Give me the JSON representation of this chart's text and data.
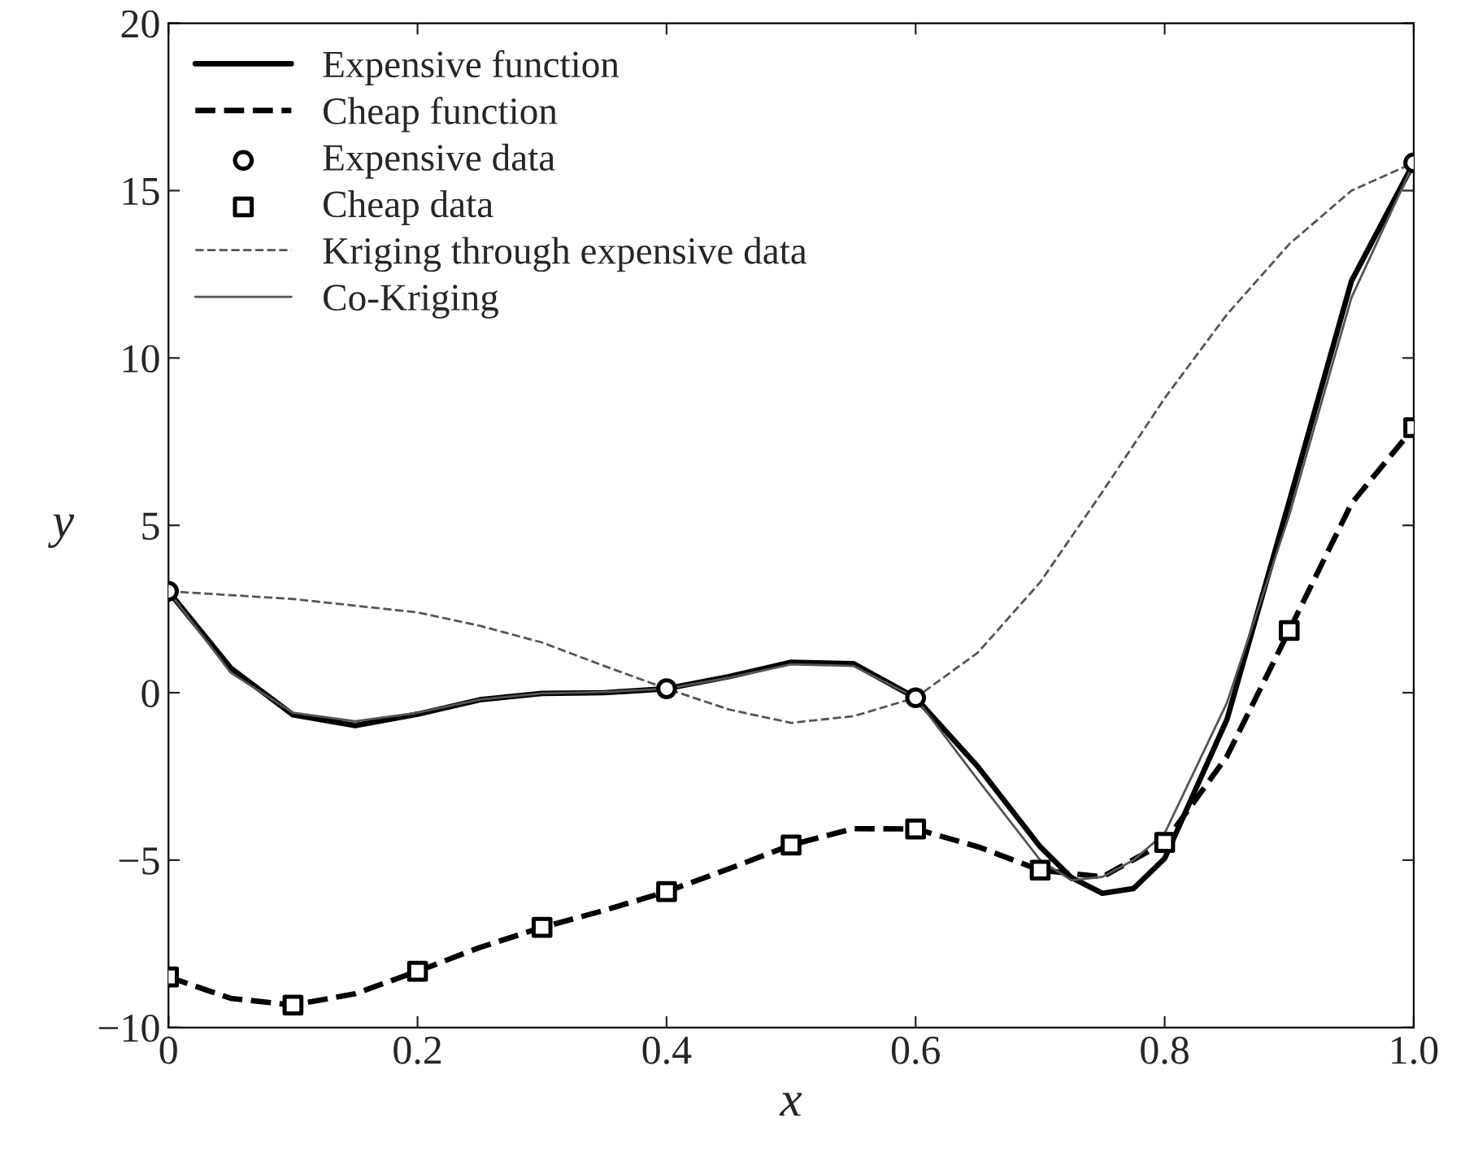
{
  "chart_data": {
    "type": "line",
    "xlabel": "x",
    "ylabel": "y",
    "xlim": [
      0,
      1
    ],
    "ylim": [
      -10,
      20
    ],
    "xticks": [
      0,
      {
        "value": 0.2,
        "label": "0.2"
      },
      {
        "value": 0.4,
        "label": "0.4"
      },
      {
        "value": 0.6,
        "label": "0.6"
      },
      {
        "value": 0.8,
        "label": "0.8"
      },
      {
        "value": 1,
        "label": "1.0"
      }
    ],
    "yticks": [
      {
        "value": -10,
        "label": "−10"
      },
      {
        "value": -5,
        "label": "−5"
      },
      0,
      5,
      10,
      15,
      20
    ],
    "grid": false,
    "legend": "top left",
    "series": [
      {
        "name": "Expensive function",
        "line_style": "solid",
        "color": "#000000",
        "x": [
          0,
          0.05,
          0.1,
          0.15,
          0.2,
          0.25,
          0.3,
          0.35,
          0.4,
          0.45,
          0.5,
          0.55,
          0.6,
          0.65,
          0.7,
          0.725,
          0.75,
          0.775,
          0.8,
          0.85,
          0.9,
          0.95,
          1.0
        ],
        "values": [
          3.03,
          0.74,
          -0.66,
          -0.98,
          -0.64,
          -0.21,
          -0.02,
          0.0,
          0.12,
          0.48,
          0.91,
          0.87,
          -0.15,
          -2.21,
          -4.6,
          -5.52,
          -5.99,
          -5.85,
          -4.95,
          -0.8,
          5.71,
          12.3,
          15.83
        ]
      },
      {
        "name": "Cheap function",
        "line_style": "dashed",
        "color": "#000000",
        "x": [
          0,
          0.05,
          0.1,
          0.15,
          0.2,
          0.25,
          0.3,
          0.35,
          0.4,
          0.45,
          0.5,
          0.55,
          0.6,
          0.65,
          0.7,
          0.75,
          0.8,
          0.85,
          0.9,
          0.95,
          1.0
        ],
        "values": [
          -8.49,
          -9.13,
          -9.33,
          -8.99,
          -8.32,
          -7.61,
          -7.01,
          -6.5,
          -5.94,
          -5.26,
          -4.55,
          -4.06,
          -4.07,
          -4.6,
          -5.3,
          -5.5,
          -4.47,
          -1.9,
          1.86,
          5.65,
          7.92
        ]
      },
      {
        "name": "Expensive data",
        "type": "scatter",
        "marker": "circle",
        "color": "#000000",
        "x": [
          0,
          0.4,
          0.6,
          1.0
        ],
        "values": [
          3.03,
          0.12,
          -0.15,
          15.83
        ]
      },
      {
        "name": "Cheap data",
        "type": "scatter",
        "marker": "square",
        "color": "#000000",
        "x": [
          0,
          0.1,
          0.2,
          0.3,
          0.4,
          0.5,
          0.6,
          0.7,
          0.8,
          0.9,
          1.0
        ],
        "values": [
          -8.49,
          -9.33,
          -8.32,
          -7.01,
          -5.94,
          -4.55,
          -4.07,
          -5.3,
          -4.47,
          1.86,
          7.92
        ]
      },
      {
        "name": "Kriging through expensive data",
        "line_style": "dashed",
        "color": "#555555",
        "x": [
          0,
          0.1,
          0.2,
          0.25,
          0.3,
          0.35,
          0.4,
          0.45,
          0.5,
          0.55,
          0.6,
          0.65,
          0.7,
          0.75,
          0.8,
          0.85,
          0.9,
          0.95,
          1.0
        ],
        "values": [
          3.03,
          2.8,
          2.4,
          2.0,
          1.5,
          0.8,
          0.12,
          -0.5,
          -0.9,
          -0.7,
          -0.15,
          1.2,
          3.3,
          6.0,
          8.8,
          11.3,
          13.4,
          15.0,
          15.83
        ]
      },
      {
        "name": "Co-Kriging",
        "line_style": "solid",
        "color": "#555555",
        "x": [
          0,
          0.05,
          0.1,
          0.15,
          0.2,
          0.25,
          0.3,
          0.35,
          0.4,
          0.45,
          0.5,
          0.55,
          0.6,
          0.65,
          0.7,
          0.725,
          0.75,
          0.775,
          0.8,
          0.85,
          0.9,
          0.95,
          1.0
        ],
        "values": [
          3.03,
          0.6,
          -0.6,
          -0.85,
          -0.6,
          -0.2,
          -0.02,
          0.02,
          0.12,
          0.45,
          0.85,
          0.8,
          -0.15,
          -2.6,
          -5.0,
          -5.6,
          -5.5,
          -5.0,
          -4.2,
          -0.3,
          5.3,
          11.8,
          15.83
        ]
      }
    ]
  }
}
